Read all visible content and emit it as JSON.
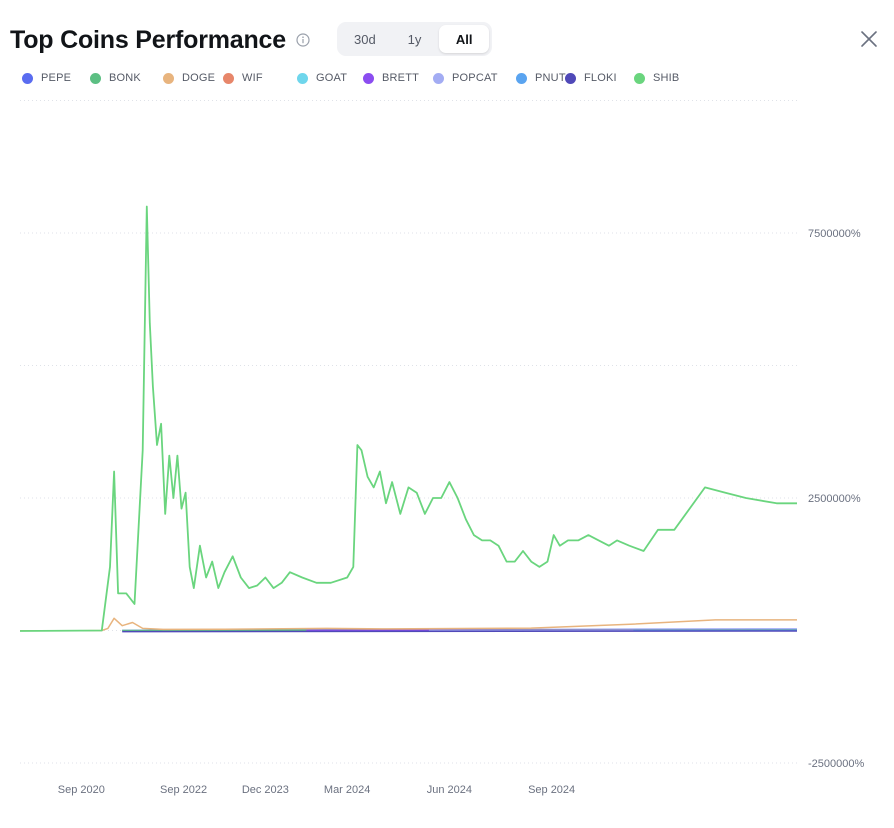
{
  "header": {
    "title": "Top Coins Performance"
  },
  "range_tabs": [
    {
      "label": "30d",
      "active": false
    },
    {
      "label": "1y",
      "active": false
    },
    {
      "label": "All",
      "active": true
    }
  ],
  "icons": {
    "info": "info-icon",
    "close": "close-icon"
  },
  "chart_data": {
    "type": "line",
    "title": "Top Coins Performance",
    "xlabel": "",
    "ylabel": "",
    "grid": true,
    "legend_position": "top",
    "y_tick_values": [
      -2500000,
      2500000,
      7500000
    ],
    "y_tick_labels": [
      "-2500000%",
      "2500000%",
      "7500000%"
    ],
    "ylim": [
      -2500000,
      7500000
    ],
    "x_tick_labels": [
      "Sep 2020",
      "Sep 2022",
      "Dec 2023",
      "Mar 2024",
      "Jun 2024",
      "Sep 2024"
    ],
    "x_tick_positions": [
      3,
      8,
      12,
      16,
      21,
      26
    ],
    "x_range": [
      0,
      38
    ],
    "series": [
      {
        "name": "PEPE",
        "color": "#5a6cf0",
        "points": [
          [
            5,
            0
          ],
          [
            10,
            10000
          ],
          [
            20,
            15000
          ],
          [
            38,
            25000
          ]
        ]
      },
      {
        "name": "BONK",
        "color": "#5cbf83",
        "points": [
          [
            5,
            0
          ],
          [
            20,
            8000
          ],
          [
            38,
            12000
          ]
        ]
      },
      {
        "name": "DOGE",
        "color": "#e8b47e",
        "points": [
          [
            0,
            -5000
          ],
          [
            3,
            -3000
          ],
          [
            4,
            0
          ],
          [
            4.3,
            40000
          ],
          [
            4.6,
            230000
          ],
          [
            5,
            90000
          ],
          [
            5.5,
            150000
          ],
          [
            6,
            40000
          ],
          [
            7,
            20000
          ],
          [
            10,
            25000
          ],
          [
            15,
            40000
          ],
          [
            18,
            30000
          ],
          [
            25,
            45000
          ],
          [
            30,
            120000
          ],
          [
            34,
            200000
          ],
          [
            38,
            200000
          ]
        ]
      },
      {
        "name": "WIF",
        "color": "#e7866a",
        "points": [
          [
            14,
            0
          ],
          [
            20,
            5000
          ],
          [
            38,
            8000
          ]
        ]
      },
      {
        "name": "GOAT",
        "color": "#6fd6ec",
        "points": [
          [
            27,
            0
          ],
          [
            38,
            6000
          ]
        ]
      },
      {
        "name": "BRETT",
        "color": "#8b4df0",
        "points": [
          [
            14,
            0
          ],
          [
            38,
            5000
          ]
        ]
      },
      {
        "name": "POPCAT",
        "color": "#a3acf3",
        "points": [
          [
            20,
            0
          ],
          [
            38,
            4000
          ]
        ]
      },
      {
        "name": "PNUT",
        "color": "#5aa4f0",
        "points": [
          [
            30,
            0
          ],
          [
            38,
            3000
          ]
        ]
      },
      {
        "name": "FLOKI",
        "color": "#5049b8",
        "points": [
          [
            5,
            -20000
          ],
          [
            38,
            -10000
          ]
        ]
      },
      {
        "name": "SHIB",
        "color": "#6ad57e",
        "points": [
          [
            0,
            -10000
          ],
          [
            4,
            0
          ],
          [
            4.4,
            1200000
          ],
          [
            4.6,
            3000000
          ],
          [
            4.8,
            700000
          ],
          [
            5.2,
            700000
          ],
          [
            5.6,
            500000
          ],
          [
            6.0,
            3400000
          ],
          [
            6.2,
            8000000
          ],
          [
            6.35,
            5800000
          ],
          [
            6.5,
            4600000
          ],
          [
            6.7,
            3500000
          ],
          [
            6.9,
            3900000
          ],
          [
            7.1,
            2200000
          ],
          [
            7.3,
            3300000
          ],
          [
            7.5,
            2500000
          ],
          [
            7.7,
            3300000
          ],
          [
            7.9,
            2300000
          ],
          [
            8.1,
            2600000
          ],
          [
            8.3,
            1200000
          ],
          [
            8.5,
            800000
          ],
          [
            8.8,
            1600000
          ],
          [
            9.1,
            1000000
          ],
          [
            9.4,
            1300000
          ],
          [
            9.7,
            800000
          ],
          [
            10,
            1100000
          ],
          [
            10.4,
            1400000
          ],
          [
            10.8,
            1000000
          ],
          [
            11.2,
            800000
          ],
          [
            11.6,
            850000
          ],
          [
            12,
            1000000
          ],
          [
            12.4,
            800000
          ],
          [
            12.8,
            900000
          ],
          [
            13.2,
            1100000
          ],
          [
            13.8,
            1000000
          ],
          [
            14.5,
            900000
          ],
          [
            15.2,
            900000
          ],
          [
            16,
            1000000
          ],
          [
            16.3,
            1200000
          ],
          [
            16.5,
            3500000
          ],
          [
            16.7,
            3400000
          ],
          [
            17,
            2900000
          ],
          [
            17.3,
            2700000
          ],
          [
            17.6,
            3000000
          ],
          [
            17.9,
            2400000
          ],
          [
            18.2,
            2800000
          ],
          [
            18.6,
            2200000
          ],
          [
            19,
            2700000
          ],
          [
            19.4,
            2600000
          ],
          [
            19.8,
            2200000
          ],
          [
            20.2,
            2500000
          ],
          [
            20.6,
            2500000
          ],
          [
            21,
            2800000
          ],
          [
            21.4,
            2500000
          ],
          [
            21.8,
            2100000
          ],
          [
            22.2,
            1800000
          ],
          [
            22.6,
            1700000
          ],
          [
            23,
            1700000
          ],
          [
            23.4,
            1600000
          ],
          [
            23.8,
            1300000
          ],
          [
            24.2,
            1300000
          ],
          [
            24.6,
            1500000
          ],
          [
            25,
            1300000
          ],
          [
            25.4,
            1200000
          ],
          [
            25.8,
            1300000
          ],
          [
            26.1,
            1800000
          ],
          [
            26.4,
            1600000
          ],
          [
            26.8,
            1700000
          ],
          [
            27.3,
            1700000
          ],
          [
            27.8,
            1800000
          ],
          [
            28.3,
            1700000
          ],
          [
            28.8,
            1600000
          ],
          [
            29.2,
            1700000
          ],
          [
            29.8,
            1600000
          ],
          [
            30.5,
            1500000
          ],
          [
            31.2,
            1900000
          ],
          [
            32,
            1900000
          ],
          [
            33.5,
            2700000
          ],
          [
            34.5,
            2600000
          ],
          [
            35.5,
            2500000
          ],
          [
            37,
            2400000
          ],
          [
            38,
            2400000
          ]
        ]
      }
    ]
  }
}
